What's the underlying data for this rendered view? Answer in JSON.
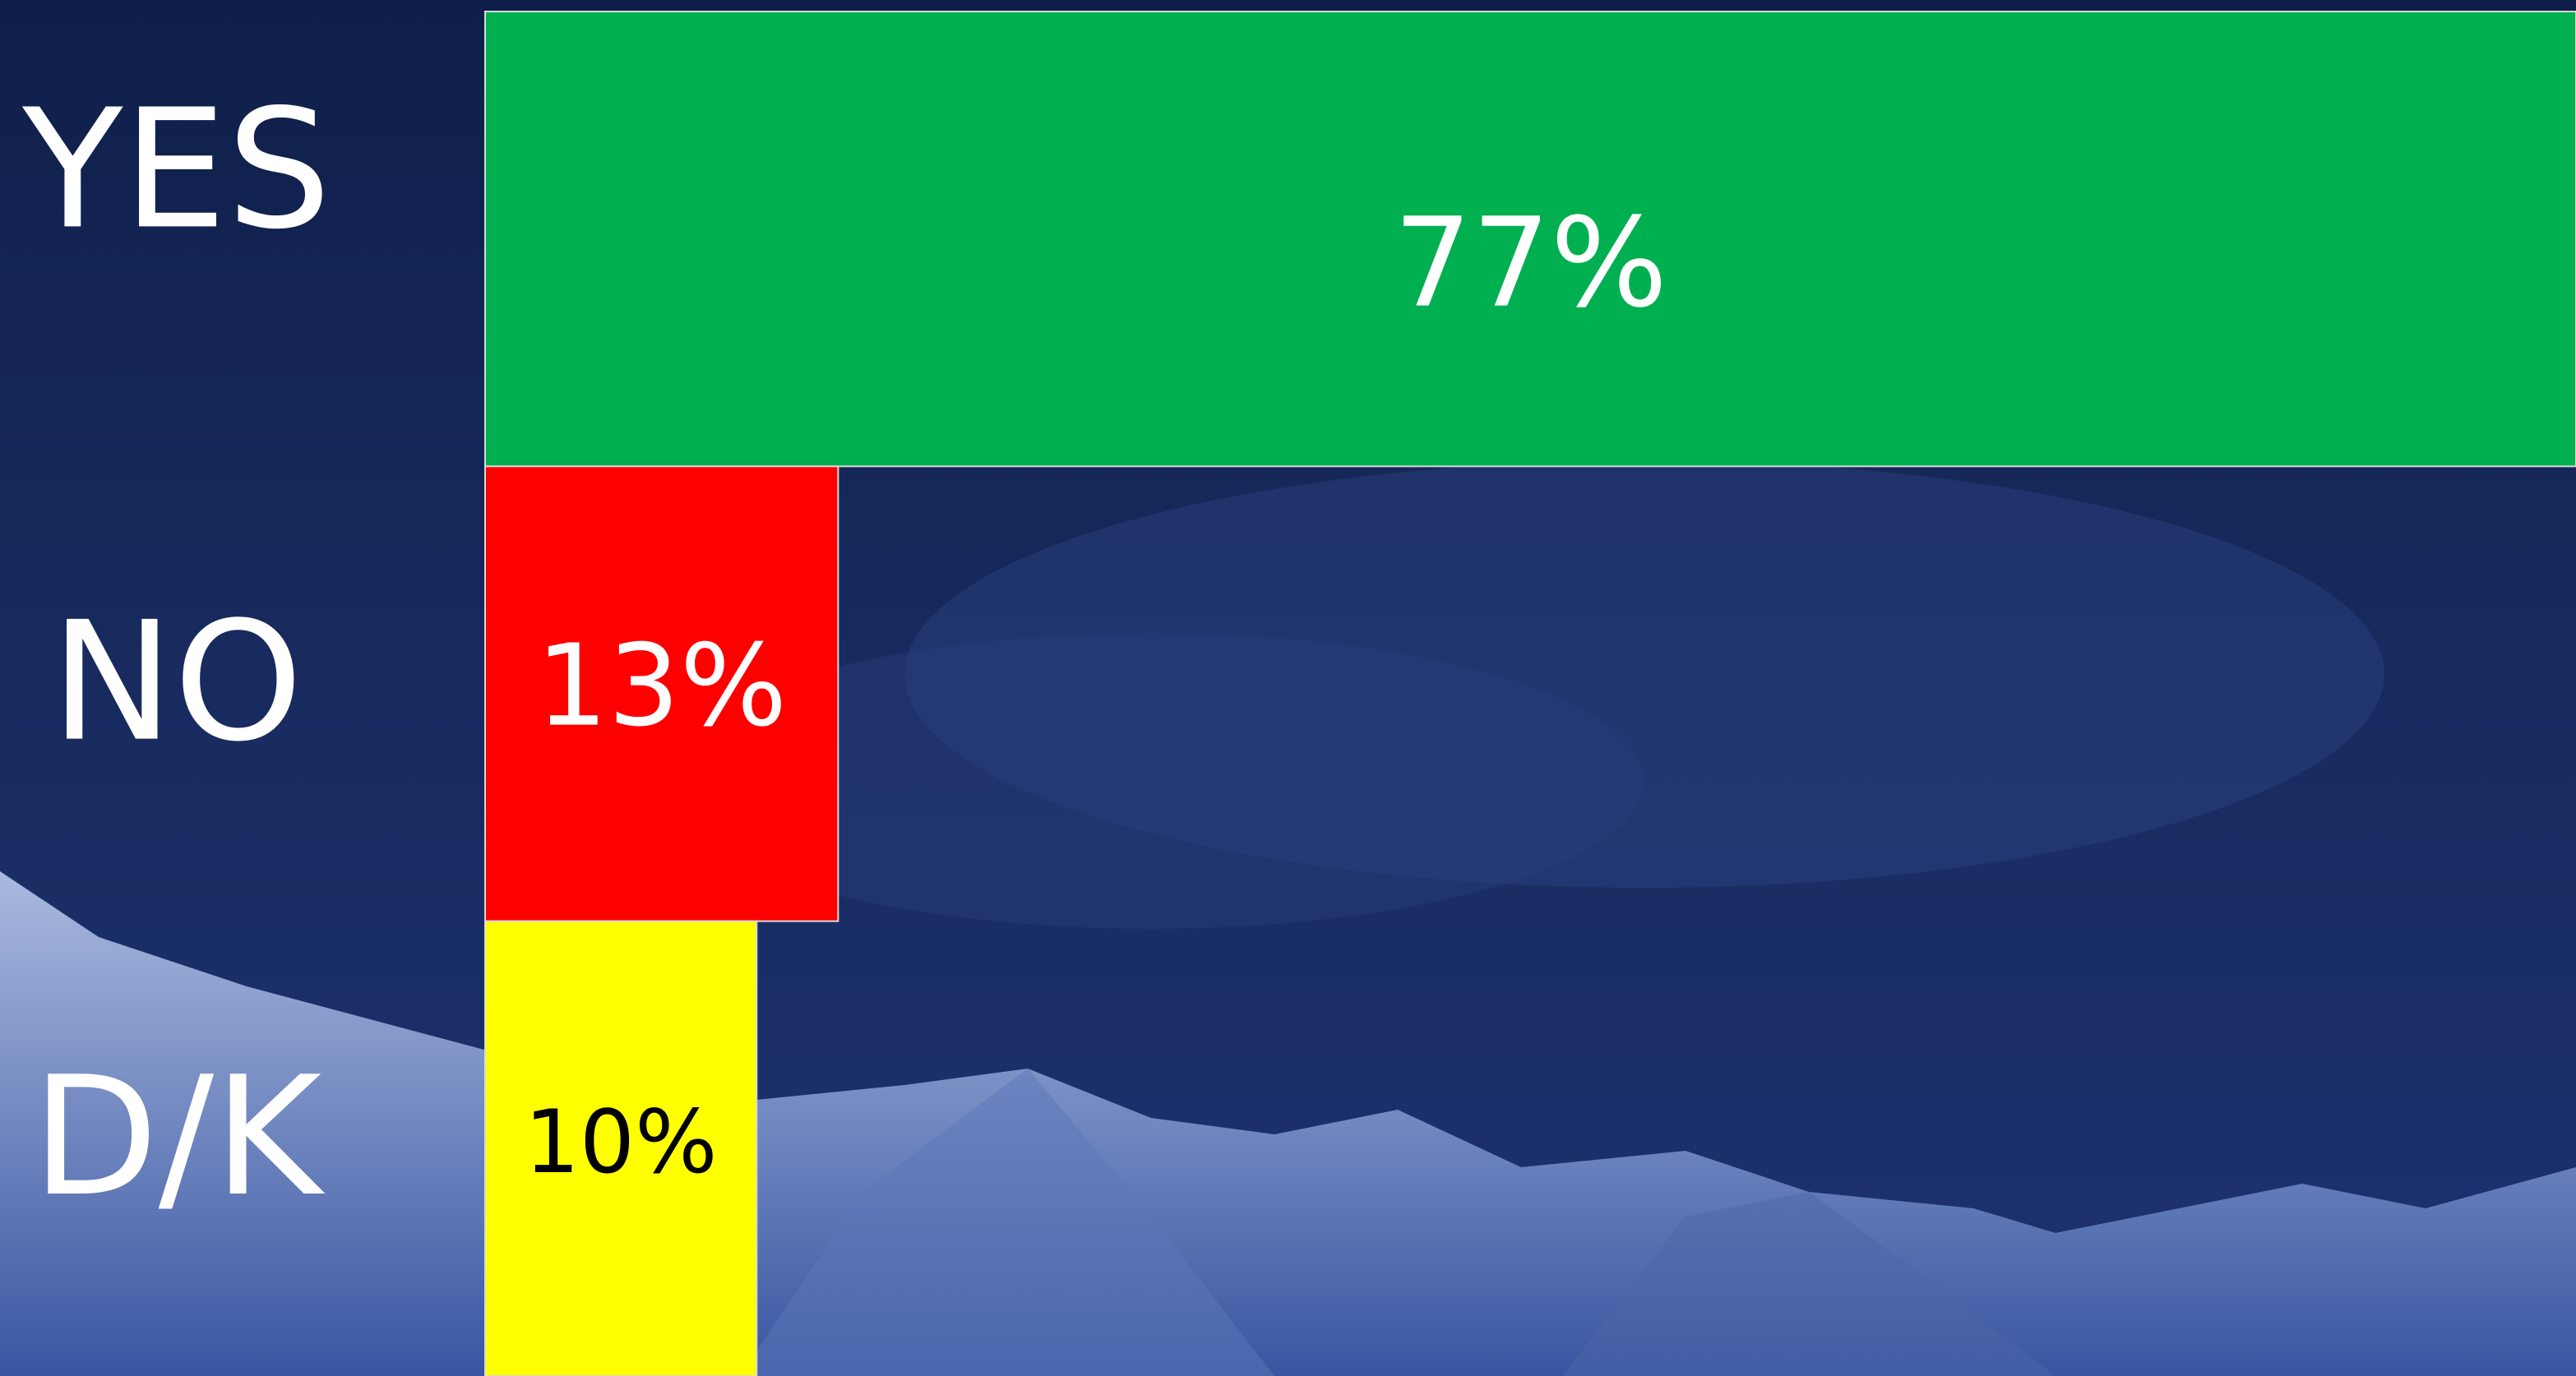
{
  "chart_data": {
    "type": "hbar",
    "categories": [
      "YES",
      "NO",
      "D/K"
    ],
    "values": [
      77,
      13,
      10
    ],
    "value_labels": [
      "77%",
      "13%",
      "10%"
    ],
    "colors": [
      "#00b050",
      "#ff0000",
      "#ffff00"
    ]
  }
}
